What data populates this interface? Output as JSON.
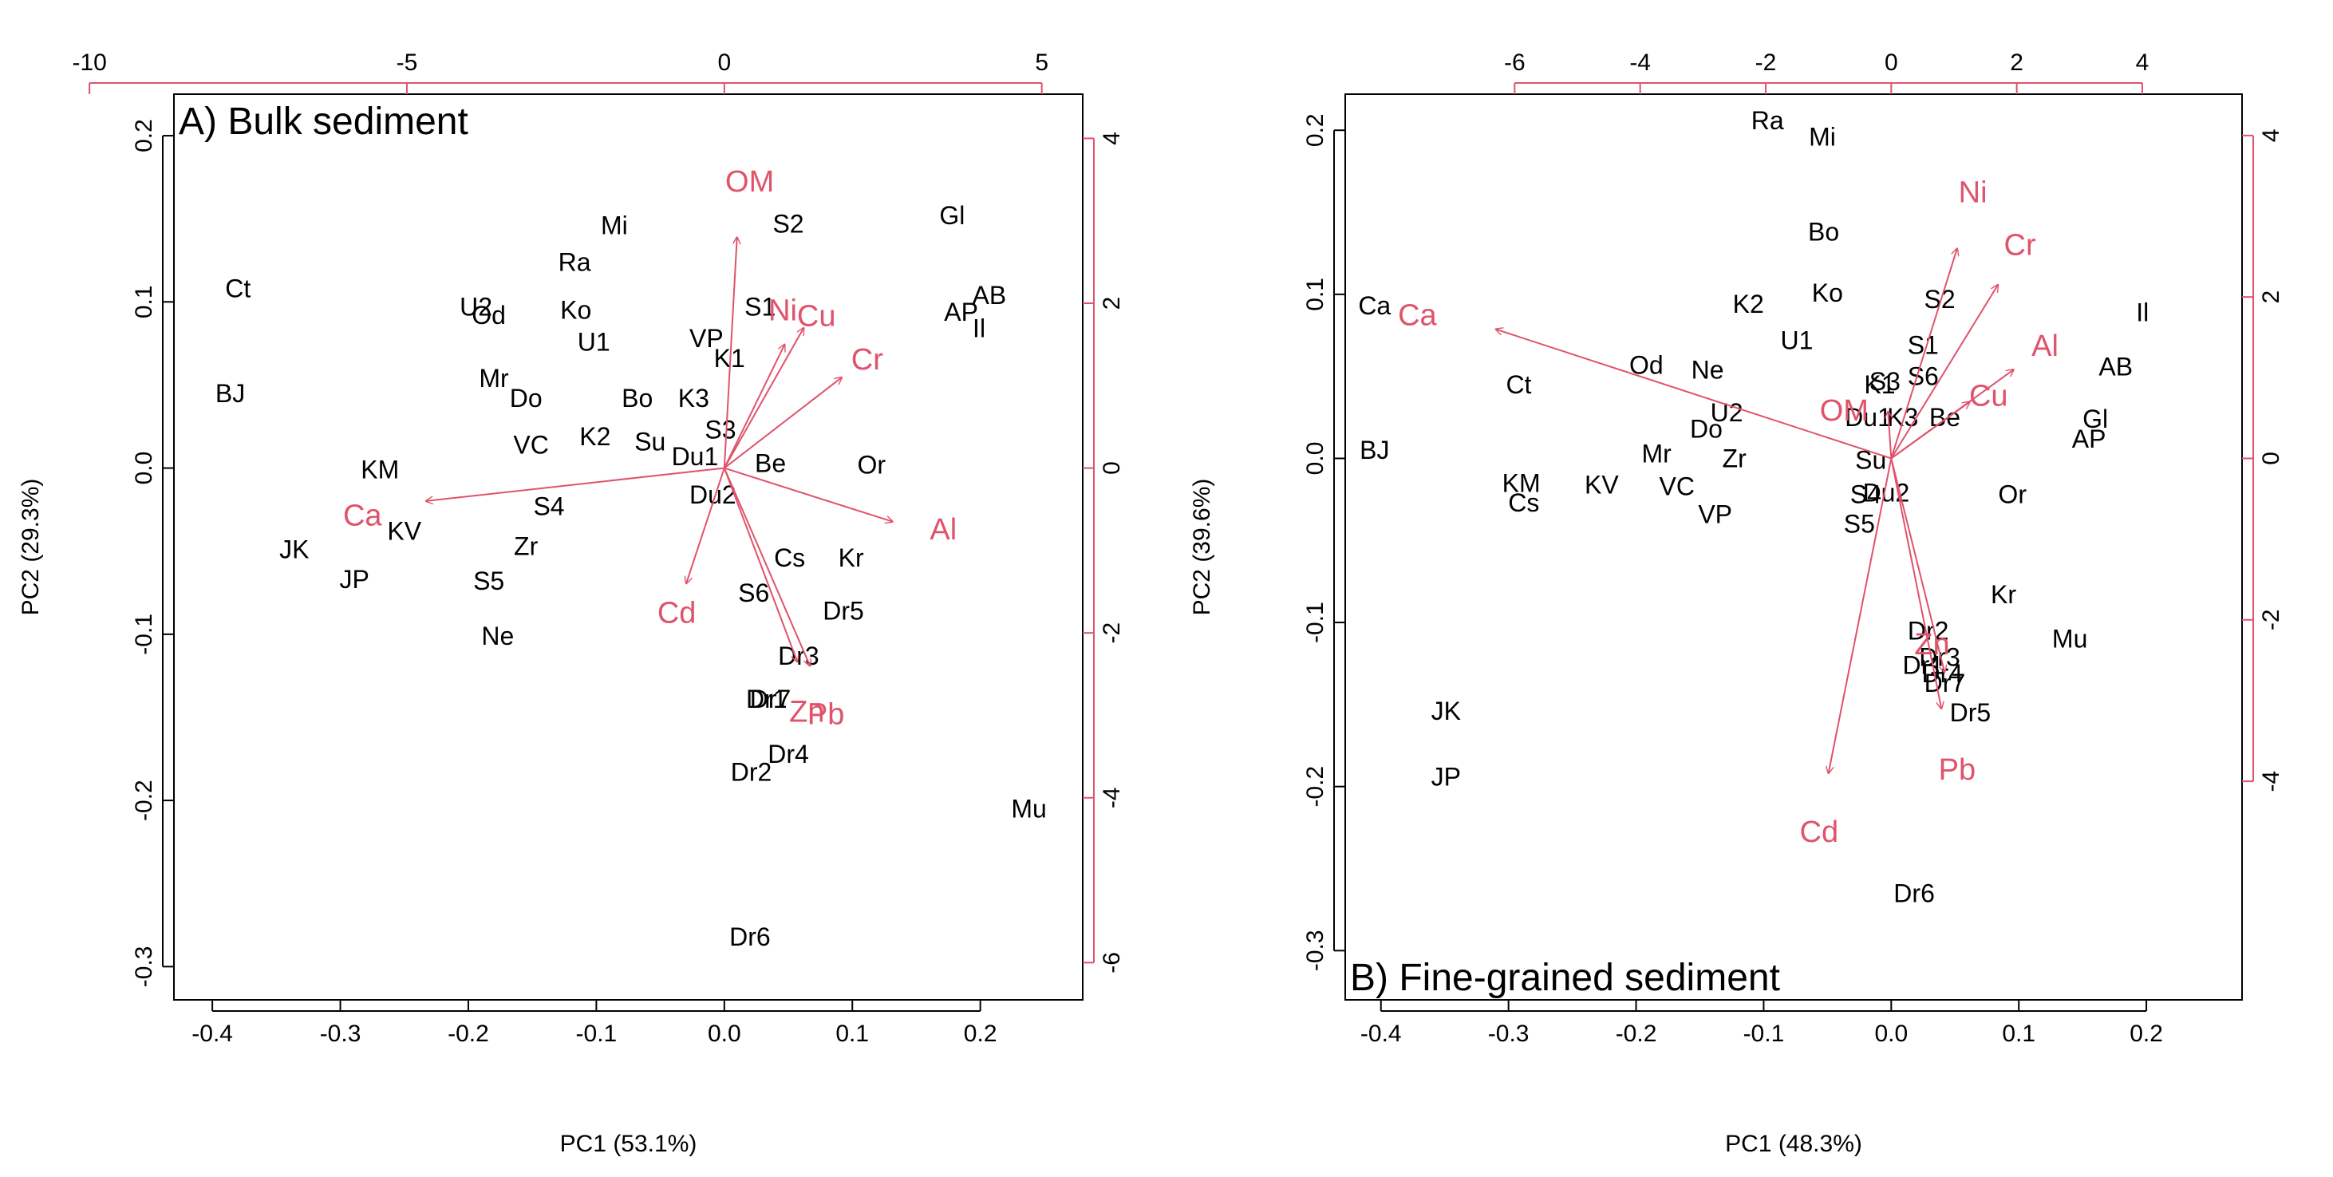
{
  "colors": {
    "loading": "#df536b",
    "score": "#000000",
    "axis": "#000000"
  },
  "chart_data": [
    {
      "type": "scatter",
      "title": "A) Bulk sediment",
      "xlabel": "PC1 (53.1%)",
      "ylabel": "PC2 (29.3%)",
      "xlim": [
        -0.43,
        0.28
      ],
      "ylim": [
        -0.32,
        0.225
      ],
      "x_ticks": [
        "-0.4",
        "-0.3",
        "-0.2",
        "-0.1",
        "0.0",
        "0.1",
        "0.2"
      ],
      "y_ticks": [
        "-0.3",
        "-0.2",
        "-0.1",
        "0.0",
        "0.1",
        "0.2"
      ],
      "top_ticks": [
        "-10",
        "-5",
        "0",
        "5"
      ],
      "right_ticks": [
        "-6",
        "-4",
        "-2",
        "0",
        "2",
        "4"
      ],
      "loading_scale": 0.0496,
      "scores": [
        {
          "label": "Mi",
          "x": -0.086,
          "y": 0.146
        },
        {
          "label": "S2",
          "x": 0.05,
          "y": 0.147
        },
        {
          "label": "Gl",
          "x": 0.178,
          "y": 0.152
        },
        {
          "label": "Ra",
          "x": -0.117,
          "y": 0.124
        },
        {
          "label": "Ct",
          "x": -0.38,
          "y": 0.108
        },
        {
          "label": "U2",
          "x": -0.194,
          "y": 0.097
        },
        {
          "label": "Od",
          "x": -0.184,
          "y": 0.092
        },
        {
          "label": "Ko",
          "x": -0.116,
          "y": 0.095
        },
        {
          "label": "AB",
          "x": 0.207,
          "y": 0.104
        },
        {
          "label": "AP",
          "x": 0.185,
          "y": 0.094
        },
        {
          "label": "Il",
          "x": 0.199,
          "y": 0.084
        },
        {
          "label": "S1",
          "x": 0.028,
          "y": 0.097
        },
        {
          "label": "U1",
          "x": -0.102,
          "y": 0.076
        },
        {
          "label": "VP",
          "x": -0.014,
          "y": 0.078
        },
        {
          "label": "K1",
          "x": 0.004,
          "y": 0.066
        },
        {
          "label": "Mr",
          "x": -0.18,
          "y": 0.054
        },
        {
          "label": "BJ",
          "x": -0.386,
          "y": 0.045
        },
        {
          "label": "Do",
          "x": -0.155,
          "y": 0.042
        },
        {
          "label": "Bo",
          "x": -0.068,
          "y": 0.042
        },
        {
          "label": "K3",
          "x": -0.024,
          "y": 0.042
        },
        {
          "label": "VC",
          "x": -0.151,
          "y": 0.014
        },
        {
          "label": "K2",
          "x": -0.101,
          "y": 0.019
        },
        {
          "label": "Su",
          "x": -0.058,
          "y": 0.016
        },
        {
          "label": "S3",
          "x": -0.003,
          "y": 0.023
        },
        {
          "label": "Du1",
          "x": -0.023,
          "y": 0.007
        },
        {
          "label": "KM",
          "x": -0.269,
          "y": -0.001
        },
        {
          "label": "Be",
          "x": 0.036,
          "y": 0.003
        },
        {
          "label": "Or",
          "x": 0.115,
          "y": 0.002
        },
        {
          "label": "Du2",
          "x": -0.009,
          "y": -0.016
        },
        {
          "label": "S4",
          "x": -0.137,
          "y": -0.023
        },
        {
          "label": "KV",
          "x": -0.25,
          "y": -0.038
        },
        {
          "label": "Zr",
          "x": -0.155,
          "y": -0.047
        },
        {
          "label": "JK",
          "x": -0.336,
          "y": -0.049
        },
        {
          "label": "Cs",
          "x": 0.051,
          "y": -0.054
        },
        {
          "label": "Kr",
          "x": 0.099,
          "y": -0.054
        },
        {
          "label": "JP",
          "x": -0.289,
          "y": -0.067
        },
        {
          "label": "S5",
          "x": -0.184,
          "y": -0.068
        },
        {
          "label": "S6",
          "x": 0.023,
          "y": -0.075
        },
        {
          "label": "Dr5",
          "x": 0.093,
          "y": -0.086
        },
        {
          "label": "Ne",
          "x": -0.177,
          "y": -0.101
        },
        {
          "label": "Dr3",
          "x": 0.058,
          "y": -0.113
        },
        {
          "label": "Dr1",
          "x": 0.033,
          "y": -0.139
        },
        {
          "label": "Dr7",
          "x": 0.036,
          "y": -0.139
        },
        {
          "label": "Dr4",
          "x": 0.05,
          "y": -0.172
        },
        {
          "label": "Dr2",
          "x": 0.021,
          "y": -0.183
        },
        {
          "label": "Mu",
          "x": 0.238,
          "y": -0.205
        },
        {
          "label": "Dr6",
          "x": 0.02,
          "y": -0.282
        }
      ],
      "loadings": [
        {
          "label": "OM",
          "x": 0.2,
          "y": 2.8,
          "lx": 0.4,
          "ly": 3.48
        },
        {
          "label": "Ni",
          "x": 0.95,
          "y": 1.5,
          "lx": 0.92,
          "ly": 1.92
        },
        {
          "label": "Cu",
          "x": 1.25,
          "y": 1.7,
          "lx": 1.45,
          "ly": 1.85
        },
        {
          "label": "Cr",
          "x": 1.85,
          "y": 1.1,
          "lx": 2.25,
          "ly": 1.32
        },
        {
          "label": "Al",
          "x": 2.65,
          "y": -0.65,
          "lx": 3.45,
          "ly": -0.74
        },
        {
          "label": "Cd",
          "x": -0.6,
          "y": -1.4,
          "lx": -0.75,
          "ly": -1.75
        },
        {
          "label": "Zn",
          "x": 1.15,
          "y": -2.35,
          "lx": 1.3,
          "ly": -2.95
        },
        {
          "label": "Pb",
          "x": 1.35,
          "y": -2.4,
          "lx": 1.6,
          "ly": -2.98
        },
        {
          "label": "Ca",
          "x": -4.7,
          "y": -0.4,
          "lx": -5.7,
          "ly": -0.57
        }
      ]
    },
    {
      "type": "scatter",
      "title": "B) Fine-grained sediment",
      "xlabel": "PC1 (48.3%)",
      "ylabel": "PC2 (39.6%)",
      "xlim": [
        -0.428,
        0.275
      ],
      "ylim": [
        -0.33,
        0.222
      ],
      "x_ticks": [
        "-0.4",
        "-0.3",
        "-0.2",
        "-0.1",
        "0.0",
        "0.1",
        "0.2"
      ],
      "y_ticks": [
        "-0.3",
        "-0.2",
        "-0.1",
        "0.0",
        "0.1",
        "0.2"
      ],
      "top_ticks": [
        "-6",
        "-4",
        "-2",
        "0",
        "2",
        "4"
      ],
      "right_ticks": [
        "-4",
        "-2",
        "0",
        "2",
        "4"
      ],
      "loading_scale": 0.0492,
      "scores": [
        {
          "label": "Ra",
          "x": -0.097,
          "y": 0.206
        },
        {
          "label": "Mi",
          "x": -0.054,
          "y": 0.196
        },
        {
          "label": "Bo",
          "x": -0.053,
          "y": 0.138
        },
        {
          "label": "K2",
          "x": -0.112,
          "y": 0.094
        },
        {
          "label": "Ko",
          "x": -0.05,
          "y": 0.101
        },
        {
          "label": "S2",
          "x": 0.038,
          "y": 0.097
        },
        {
          "label": "U1",
          "x": -0.074,
          "y": 0.072
        },
        {
          "label": "S1",
          "x": 0.025,
          "y": 0.069
        },
        {
          "label": "Il",
          "x": 0.197,
          "y": 0.089
        },
        {
          "label": "Ca",
          "x": -0.405,
          "y": 0.093
        },
        {
          "label": "Od",
          "x": -0.192,
          "y": 0.057
        },
        {
          "label": "Ne",
          "x": -0.144,
          "y": 0.054
        },
        {
          "label": "S6",
          "x": 0.025,
          "y": 0.05
        },
        {
          "label": "AB",
          "x": 0.176,
          "y": 0.056
        },
        {
          "label": "Ct",
          "x": -0.292,
          "y": 0.045
        },
        {
          "label": "S3",
          "x": -0.005,
          "y": 0.047
        },
        {
          "label": "K1",
          "x": -0.009,
          "y": 0.045
        },
        {
          "label": "U2",
          "x": -0.129,
          "y": 0.028
        },
        {
          "label": "Du1",
          "x": -0.018,
          "y": 0.025
        },
        {
          "label": "K3",
          "x": 0.009,
          "y": 0.025
        },
        {
          "label": "Be",
          "x": 0.042,
          "y": 0.025
        },
        {
          "label": "Gl",
          "x": 0.16,
          "y": 0.024
        },
        {
          "label": "AP",
          "x": 0.155,
          "y": 0.012
        },
        {
          "label": "Do",
          "x": -0.145,
          "y": 0.018
        },
        {
          "label": "BJ",
          "x": -0.405,
          "y": 0.005
        },
        {
          "label": "Mr",
          "x": -0.184,
          "y": 0.003
        },
        {
          "label": "Zr",
          "x": -0.123,
          "y": 0.0
        },
        {
          "label": "Su",
          "x": -0.016,
          "y": -0.001
        },
        {
          "label": "KM",
          "x": -0.29,
          "y": -0.015
        },
        {
          "label": "KV",
          "x": -0.227,
          "y": -0.016
        },
        {
          "label": "VC",
          "x": -0.168,
          "y": -0.017
        },
        {
          "label": "S4",
          "x": -0.02,
          "y": -0.022
        },
        {
          "label": "Du2",
          "x": -0.004,
          "y": -0.021
        },
        {
          "label": "Cs",
          "x": -0.288,
          "y": -0.027
        },
        {
          "label": "Or",
          "x": 0.095,
          "y": -0.022
        },
        {
          "label": "VP",
          "x": -0.138,
          "y": -0.034
        },
        {
          "label": "S5",
          "x": -0.025,
          "y": -0.04
        },
        {
          "label": "Kr",
          "x": 0.088,
          "y": -0.083
        },
        {
          "label": "Dr2",
          "x": 0.029,
          "y": -0.105
        },
        {
          "label": "Mu",
          "x": 0.14,
          "y": -0.11
        },
        {
          "label": "Dr3",
          "x": 0.038,
          "y": -0.121
        },
        {
          "label": "Dr1",
          "x": 0.025,
          "y": -0.126
        },
        {
          "label": "Dr4",
          "x": 0.04,
          "y": -0.131
        },
        {
          "label": "Dr7",
          "x": 0.042,
          "y": -0.137
        },
        {
          "label": "Dr5",
          "x": 0.062,
          "y": -0.155
        },
        {
          "label": "JK",
          "x": -0.349,
          "y": -0.154
        },
        {
          "label": "JP",
          "x": -0.349,
          "y": -0.194
        },
        {
          "label": "Dr6",
          "x": 0.018,
          "y": -0.265
        }
      ],
      "loadings": [
        {
          "label": "Ni",
          "x": 1.05,
          "y": 2.6,
          "lx": 1.3,
          "ly": 3.3
        },
        {
          "label": "Cr",
          "x": 1.7,
          "y": 2.15,
          "lx": 2.05,
          "ly": 2.65
        },
        {
          "label": "Al",
          "x": 1.95,
          "y": 1.1,
          "lx": 2.45,
          "ly": 1.4
        },
        {
          "label": "Cu",
          "x": 1.25,
          "y": 0.7,
          "lx": 1.55,
          "ly": 0.78
        },
        {
          "label": "OM",
          "x": -0.05,
          "y": 0.58,
          "lx": -0.75,
          "ly": 0.6
        },
        {
          "label": "Zn",
          "x": 0.85,
          "y": -2.65,
          "lx": 0.65,
          "ly": -2.3
        },
        {
          "label": "Pb",
          "x": 0.8,
          "y": -3.1,
          "lx": 1.05,
          "ly": -3.85
        },
        {
          "label": "Cd",
          "x": -1.0,
          "y": -3.9,
          "lx": -1.15,
          "ly": -4.62
        },
        {
          "label": "Ca",
          "x": -6.3,
          "y": 1.6,
          "lx": -7.55,
          "ly": 1.78
        }
      ]
    }
  ]
}
